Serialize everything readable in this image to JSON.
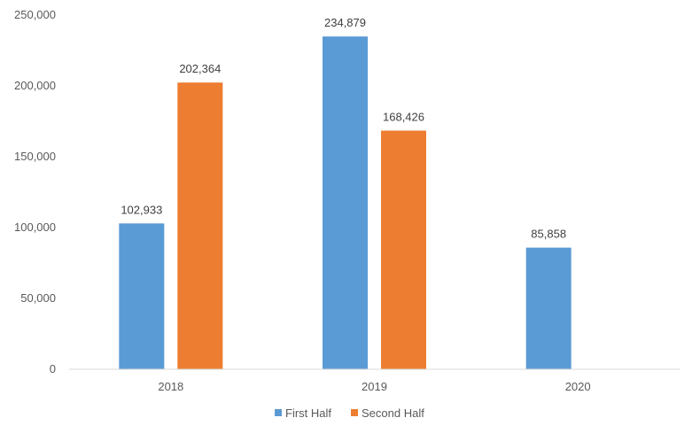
{
  "chart_data": {
    "type": "bar",
    "categories": [
      "2018",
      "2019",
      "2020"
    ],
    "series": [
      {
        "name": "First Half",
        "values": [
          102933,
          234879,
          85858
        ],
        "value_labels": [
          "102,933",
          "234,879",
          "85,858"
        ],
        "color": "#5b9bd5"
      },
      {
        "name": "Second Half",
        "values": [
          202364,
          168426,
          null
        ],
        "value_labels": [
          "202,364",
          "168,426",
          ""
        ],
        "color": "#ed7d31"
      }
    ],
    "y_ticks": [
      0,
      50000,
      100000,
      150000,
      200000,
      250000
    ],
    "y_tick_labels": [
      "0",
      "50,000",
      "100,000",
      "150,000",
      "200,000",
      "250,000"
    ],
    "ylim": [
      0,
      250000
    ],
    "title": "",
    "xlabel": "",
    "ylabel": "",
    "grid": false,
    "legend_position": "bottom",
    "axis_color": "#d9d9d9"
  }
}
